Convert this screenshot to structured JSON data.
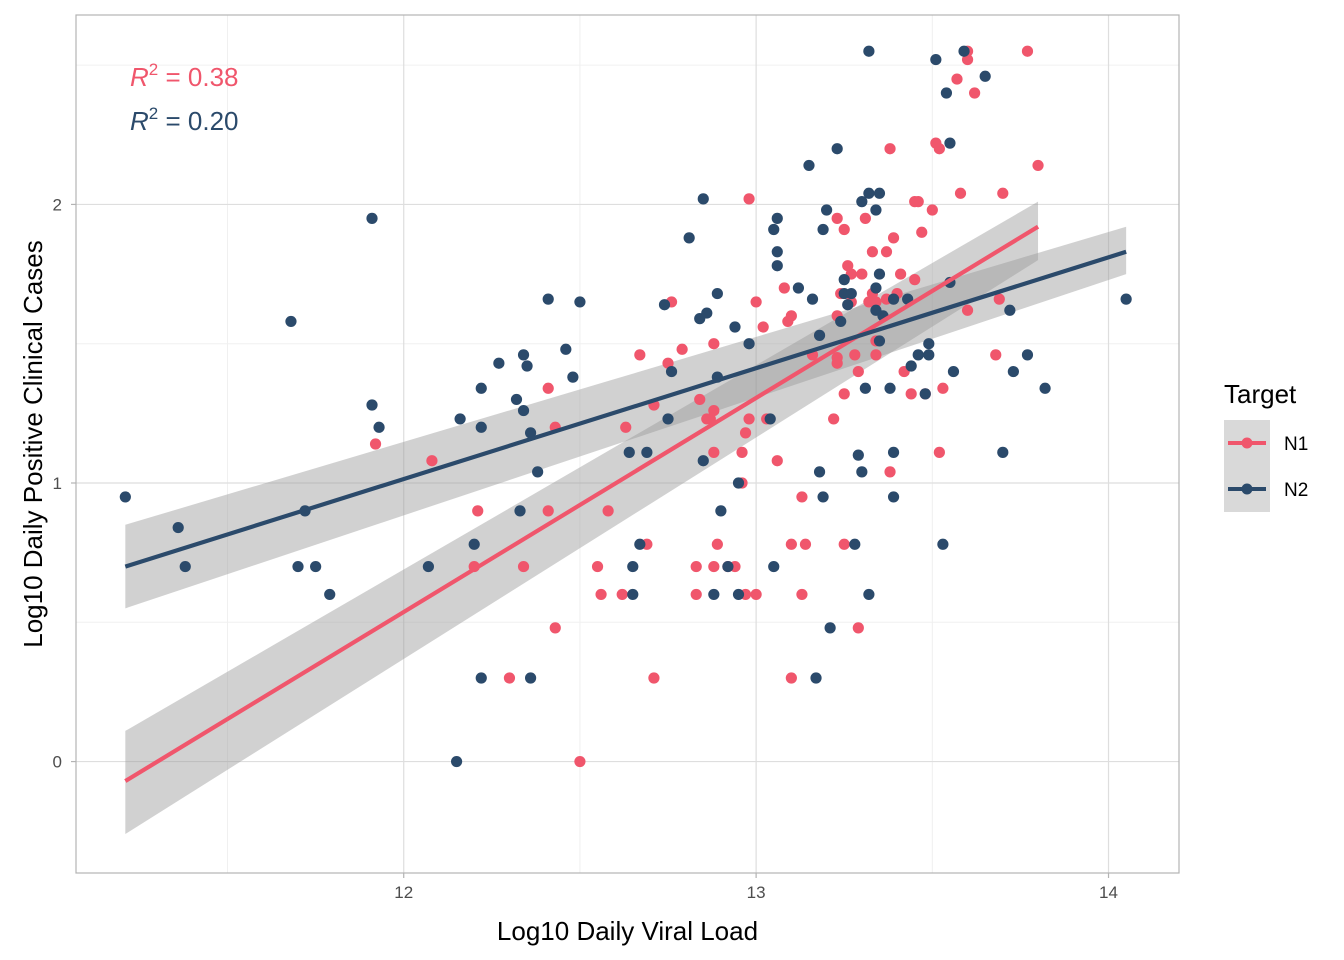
{
  "chart_data": {
    "type": "scatter",
    "xlabel": "Log10 Daily Viral Load",
    "ylabel": "Log10 Daily Positive Clinical Cases",
    "xlim": [
      11.07,
      14.2
    ],
    "ylim": [
      -0.4,
      2.68
    ],
    "x_ticks": [
      {
        "value": 12,
        "label": "12"
      },
      {
        "value": 13,
        "label": "13"
      },
      {
        "value": 14,
        "label": "14"
      }
    ],
    "y_ticks": [
      {
        "value": 0,
        "label": "0"
      },
      {
        "value": 1,
        "label": "1"
      },
      {
        "value": 2,
        "label": "2"
      }
    ],
    "x_minor": [
      11.5,
      12.5,
      13.5
    ],
    "y_minor": [
      0.5,
      1.5,
      2.5
    ],
    "grid": true,
    "legend": {
      "title": "Target",
      "position": "right"
    },
    "annotations": [
      {
        "italic": "R",
        "sup": "2",
        "rest": " = 0.38",
        "color": "#f0566c"
      },
      {
        "italic": "R",
        "sup": "2",
        "rest": " = 0.20",
        "color": "#2b4a6b"
      }
    ],
    "series": [
      {
        "name": "N1",
        "color": "#f0566c",
        "fit": {
          "x": [
            11.21,
            13.8
          ],
          "y": [
            -0.07,
            1.92
          ],
          "lower": [
            -0.26,
            1.8
          ],
          "upper": [
            0.11,
            2.01
          ]
        },
        "points": [
          [
            11.92,
            1.14
          ],
          [
            12.08,
            1.08
          ],
          [
            12.21,
            0.9
          ],
          [
            12.2,
            0.7
          ],
          [
            12.3,
            0.3
          ],
          [
            12.34,
            0.7
          ],
          [
            12.41,
            1.34
          ],
          [
            12.43,
            1.2
          ],
          [
            12.41,
            0.9
          ],
          [
            12.43,
            0.48
          ],
          [
            12.5,
            0.0
          ],
          [
            12.55,
            0.7
          ],
          [
            12.56,
            0.6
          ],
          [
            12.58,
            0.9
          ],
          [
            12.62,
            0.6
          ],
          [
            12.63,
            1.2
          ],
          [
            12.67,
            1.46
          ],
          [
            12.69,
            0.78
          ],
          [
            12.71,
            0.3
          ],
          [
            12.71,
            1.28
          ],
          [
            12.75,
            1.43
          ],
          [
            12.76,
            1.65
          ],
          [
            12.79,
            1.48
          ],
          [
            12.83,
            0.7
          ],
          [
            12.83,
            0.6
          ],
          [
            12.84,
            1.3
          ],
          [
            12.86,
            1.23
          ],
          [
            12.87,
            1.23
          ],
          [
            12.88,
            1.26
          ],
          [
            12.88,
            1.11
          ],
          [
            12.88,
            1.5
          ],
          [
            12.88,
            0.7
          ],
          [
            12.89,
            0.78
          ],
          [
            12.92,
            0.7
          ],
          [
            12.94,
            0.7
          ],
          [
            12.96,
            1.0
          ],
          [
            12.96,
            1.11
          ],
          [
            12.97,
            1.18
          ],
          [
            12.97,
            0.6
          ],
          [
            12.98,
            1.23
          ],
          [
            12.98,
            2.02
          ],
          [
            13.0,
            1.65
          ],
          [
            13.0,
            0.6
          ],
          [
            13.02,
            1.56
          ],
          [
            13.03,
            1.23
          ],
          [
            13.06,
            1.08
          ],
          [
            13.08,
            1.7
          ],
          [
            13.09,
            1.58
          ],
          [
            13.1,
            1.6
          ],
          [
            13.1,
            0.78
          ],
          [
            13.1,
            0.3
          ],
          [
            13.13,
            0.95
          ],
          [
            13.14,
            0.78
          ],
          [
            13.13,
            0.6
          ],
          [
            13.16,
            1.46
          ],
          [
            13.22,
            1.23
          ],
          [
            13.23,
            1.6
          ],
          [
            13.23,
            1.95
          ],
          [
            13.23,
            1.45
          ],
          [
            13.23,
            1.43
          ],
          [
            13.24,
            1.68
          ],
          [
            13.25,
            1.91
          ],
          [
            13.25,
            0.78
          ],
          [
            13.25,
            1.32
          ],
          [
            13.26,
            1.78
          ],
          [
            13.27,
            1.65
          ],
          [
            13.27,
            1.75
          ],
          [
            13.28,
            1.46
          ],
          [
            13.29,
            0.48
          ],
          [
            13.29,
            1.4
          ],
          [
            13.3,
            1.75
          ],
          [
            13.31,
            1.95
          ],
          [
            13.32,
            1.65
          ],
          [
            13.33,
            1.68
          ],
          [
            13.33,
            1.83
          ],
          [
            13.34,
            1.65
          ],
          [
            13.34,
            1.51
          ],
          [
            13.34,
            1.46
          ],
          [
            13.37,
            1.66
          ],
          [
            13.37,
            1.83
          ],
          [
            13.38,
            2.2
          ],
          [
            13.38,
            1.04
          ],
          [
            13.39,
            1.88
          ],
          [
            13.4,
            1.68
          ],
          [
            13.41,
            1.75
          ],
          [
            13.42,
            1.4
          ],
          [
            13.44,
            1.32
          ],
          [
            13.45,
            1.73
          ],
          [
            13.45,
            2.01
          ],
          [
            13.46,
            2.01
          ],
          [
            13.47,
            1.9
          ],
          [
            13.48,
            1.32
          ],
          [
            13.5,
            1.98
          ],
          [
            13.51,
            2.22
          ],
          [
            13.52,
            2.2
          ],
          [
            13.52,
            1.11
          ],
          [
            13.53,
            1.34
          ],
          [
            13.57,
            2.45
          ],
          [
            13.58,
            2.04
          ],
          [
            13.6,
            2.55
          ],
          [
            13.6,
            2.52
          ],
          [
            13.6,
            1.62
          ],
          [
            13.62,
            2.4
          ],
          [
            13.68,
            1.46
          ],
          [
            13.69,
            1.66
          ],
          [
            13.7,
            2.04
          ],
          [
            13.77,
            2.55
          ],
          [
            13.8,
            2.14
          ]
        ]
      },
      {
        "name": "N2",
        "color": "#2b4a6b",
        "fit": {
          "x": [
            11.21,
            14.05
          ],
          "y": [
            0.7,
            1.83
          ],
          "lower": [
            0.55,
            1.75
          ],
          "upper": [
            0.85,
            1.92
          ]
        },
        "points": [
          [
            11.21,
            0.95
          ],
          [
            11.36,
            0.84
          ],
          [
            11.38,
            0.7
          ],
          [
            11.68,
            1.58
          ],
          [
            11.7,
            0.7
          ],
          [
            11.72,
            0.9
          ],
          [
            11.75,
            0.7
          ],
          [
            11.79,
            0.6
          ],
          [
            11.91,
            1.95
          ],
          [
            11.91,
            1.28
          ],
          [
            11.93,
            1.2
          ],
          [
            12.07,
            0.7
          ],
          [
            12.15,
            0.0
          ],
          [
            12.16,
            1.23
          ],
          [
            12.2,
            0.78
          ],
          [
            12.22,
            1.34
          ],
          [
            12.22,
            1.2
          ],
          [
            12.22,
            0.3
          ],
          [
            12.27,
            1.43
          ],
          [
            12.32,
            1.3
          ],
          [
            12.33,
            0.9
          ],
          [
            12.34,
            1.46
          ],
          [
            12.34,
            1.26
          ],
          [
            12.35,
            1.42
          ],
          [
            12.36,
            1.18
          ],
          [
            12.36,
            0.3
          ],
          [
            12.38,
            1.04
          ],
          [
            12.41,
            1.66
          ],
          [
            12.46,
            1.48
          ],
          [
            12.48,
            1.38
          ],
          [
            12.5,
            1.65
          ],
          [
            12.64,
            1.11
          ],
          [
            12.65,
            0.6
          ],
          [
            12.65,
            0.7
          ],
          [
            12.67,
            0.78
          ],
          [
            12.69,
            1.11
          ],
          [
            12.74,
            1.64
          ],
          [
            12.75,
            1.23
          ],
          [
            12.76,
            1.4
          ],
          [
            12.81,
            1.88
          ],
          [
            12.84,
            1.59
          ],
          [
            12.85,
            2.02
          ],
          [
            12.85,
            1.08
          ],
          [
            12.86,
            1.61
          ],
          [
            12.88,
            0.6
          ],
          [
            12.89,
            1.68
          ],
          [
            12.89,
            1.38
          ],
          [
            12.9,
            0.9
          ],
          [
            12.92,
            0.7
          ],
          [
            12.94,
            1.56
          ],
          [
            12.95,
            1.0
          ],
          [
            12.95,
            0.6
          ],
          [
            12.98,
            1.5
          ],
          [
            13.04,
            1.23
          ],
          [
            13.05,
            0.7
          ],
          [
            13.05,
            1.91
          ],
          [
            13.06,
            1.95
          ],
          [
            13.06,
            1.83
          ],
          [
            13.06,
            1.78
          ],
          [
            13.12,
            1.7
          ],
          [
            13.15,
            2.14
          ],
          [
            13.16,
            1.66
          ],
          [
            13.17,
            0.3
          ],
          [
            13.18,
            1.04
          ],
          [
            13.18,
            1.53
          ],
          [
            13.19,
            0.95
          ],
          [
            13.19,
            1.91
          ],
          [
            13.2,
            1.98
          ],
          [
            13.21,
            0.48
          ],
          [
            13.23,
            2.2
          ],
          [
            13.24,
            1.58
          ],
          [
            13.25,
            1.73
          ],
          [
            13.25,
            1.68
          ],
          [
            13.26,
            1.64
          ],
          [
            13.27,
            1.68
          ],
          [
            13.28,
            0.78
          ],
          [
            13.29,
            1.1
          ],
          [
            13.3,
            1.04
          ],
          [
            13.3,
            2.01
          ],
          [
            13.31,
            1.34
          ],
          [
            13.32,
            2.04
          ],
          [
            13.32,
            2.55
          ],
          [
            13.32,
            0.6
          ],
          [
            13.34,
            1.7
          ],
          [
            13.34,
            1.98
          ],
          [
            13.35,
            2.04
          ],
          [
            13.35,
            1.75
          ],
          [
            13.34,
            1.62
          ],
          [
            13.35,
            1.51
          ],
          [
            13.36,
            1.6
          ],
          [
            13.38,
            1.34
          ],
          [
            13.39,
            1.66
          ],
          [
            13.39,
            1.11
          ],
          [
            13.39,
            0.95
          ],
          [
            13.43,
            1.66
          ],
          [
            13.44,
            1.42
          ],
          [
            13.46,
            1.46
          ],
          [
            13.48,
            1.32
          ],
          [
            13.49,
            1.46
          ],
          [
            13.49,
            1.5
          ],
          [
            13.51,
            2.52
          ],
          [
            13.53,
            0.78
          ],
          [
            13.54,
            2.4
          ],
          [
            13.55,
            1.72
          ],
          [
            13.55,
            2.22
          ],
          [
            13.56,
            1.4
          ],
          [
            13.59,
            2.55
          ],
          [
            13.65,
            2.46
          ],
          [
            13.7,
            1.11
          ],
          [
            13.72,
            1.62
          ],
          [
            13.73,
            1.4
          ],
          [
            13.77,
            1.46
          ],
          [
            13.82,
            1.34
          ],
          [
            14.05,
            1.66
          ]
        ]
      }
    ]
  }
}
